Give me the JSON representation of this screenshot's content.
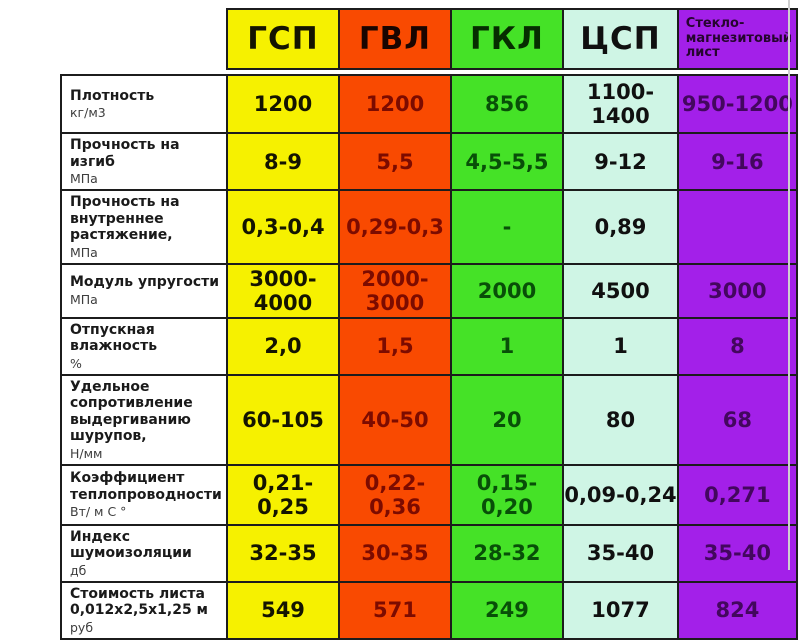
{
  "chart_data": {
    "type": "table",
    "legend_position": "none",
    "columns": [
      {
        "label": "ГСП",
        "bg": "#F6F100",
        "header_color": "#141400",
        "value_color": "#141400"
      },
      {
        "label": "ГВЛ",
        "bg": "#F94A01",
        "header_color": "#190500",
        "value_color": "#7C0B00"
      },
      {
        "label": "ГКЛ",
        "bg": "#45E227",
        "header_color": "#062D00",
        "value_color": "#084F08"
      },
      {
        "label": "ЦСП",
        "bg": "#CFF5E5",
        "header_color": "#101010",
        "value_color": "#101010"
      },
      {
        "label": "Стекло-магнезитовый лист",
        "bg": "#A320E9",
        "header_color": "#26052F",
        "value_color": "#43075E"
      }
    ],
    "rows": [
      {
        "name": "Плотность",
        "unit": "кг/м3",
        "values": [
          "1200",
          "1200",
          "856",
          "1100-1400",
          "950-1200"
        ]
      },
      {
        "name": "Прочность на изгиб",
        "unit": "МПа",
        "values": [
          "8-9",
          "5,5",
          "4,5-5,5",
          "9-12",
          "9-16"
        ]
      },
      {
        "name": "Прочность на внутреннее растяжение,",
        "unit": "МПа",
        "values": [
          "0,3-0,4",
          "0,29-0,3",
          "-",
          "0,89",
          ""
        ]
      },
      {
        "name": "Модуль упругости",
        "unit": "МПа",
        "values": [
          "3000-4000",
          "2000-3000",
          "2000",
          "4500",
          "3000"
        ]
      },
      {
        "name": "Отпускная влажность",
        "unit": "%",
        "values": [
          "2,0",
          "1,5",
          "1",
          "1",
          "8"
        ]
      },
      {
        "name": "Удельное сопротивление выдергиванию шурупов,",
        "unit": "Н/мм",
        "values": [
          "60-105",
          "40-50",
          "20",
          "80",
          "68"
        ]
      },
      {
        "name": "Коэффициент теплопроводности",
        "unit": "Вт/ м С °",
        "values": [
          "0,21-0,25",
          "0,22-0,36",
          "0,15-0,20",
          "0,09-0,24",
          "0,271"
        ]
      },
      {
        "name": "Индекс шумоизоляции",
        "unit": "дб",
        "values": [
          "32-35",
          "30-35",
          "28-32",
          "35-40",
          "35-40"
        ]
      },
      {
        "name": "Стоимость листа",
        "name2": "0,012х2,5х1,25 м",
        "unit": "руб",
        "values": [
          "549",
          "571",
          "249",
          "1077",
          "824"
        ]
      }
    ],
    "border_color": "#1C1C1C"
  }
}
